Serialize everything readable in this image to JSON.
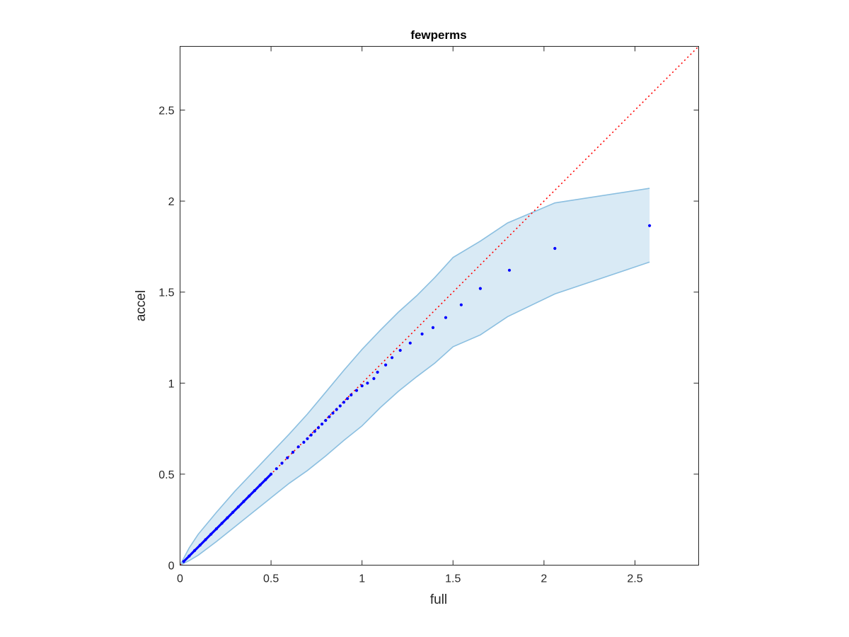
{
  "chart_data": {
    "type": "scatter",
    "title": "fewperms",
    "xlabel": "full",
    "ylabel": "accel",
    "xlim": [
      0,
      2.85
    ],
    "ylim": [
      0,
      2.85
    ],
    "grid": false,
    "legend": "none",
    "xticks": [
      0,
      0.5,
      1,
      1.5,
      2,
      2.5
    ],
    "xtick_labels": [
      "0",
      "0.5",
      "1",
      "1.5",
      "2",
      "2.5"
    ],
    "yticks": [
      0,
      0.5,
      1,
      1.5,
      2,
      2.5
    ],
    "ytick_labels": [
      "0",
      "0.5",
      "1",
      "1.5",
      "2",
      "2.5"
    ],
    "reference_line": {
      "style": "dotted",
      "color": "#ff0000",
      "from": [
        0,
        0
      ],
      "to": [
        2.85,
        2.85
      ]
    },
    "band": {
      "color": "#8bbfe0",
      "fill_opacity": 0.33,
      "x": [
        0,
        0.05,
        0.1,
        0.2,
        0.3,
        0.4,
        0.5,
        0.6,
        0.7,
        0.8,
        0.9,
        1.0,
        1.1,
        1.2,
        1.3,
        1.4,
        1.5,
        1.65,
        1.8,
        2.06,
        2.58
      ],
      "upper": [
        0,
        0.095,
        0.17,
        0.29,
        0.405,
        0.51,
        0.615,
        0.72,
        0.83,
        0.95,
        1.07,
        1.185,
        1.29,
        1.39,
        1.48,
        1.58,
        1.69,
        1.78,
        1.88,
        1.99,
        2.07
      ],
      "lower": [
        0,
        0.025,
        0.055,
        0.13,
        0.21,
        0.29,
        0.37,
        0.45,
        0.52,
        0.6,
        0.685,
        0.765,
        0.865,
        0.955,
        1.035,
        1.11,
        1.2,
        1.265,
        1.365,
        1.49,
        1.665
      ]
    },
    "series": [
      {
        "color": "#0000ff",
        "x": [
          0.02,
          0.05,
          0.08,
          0.11,
          0.14,
          0.17,
          0.2,
          0.23,
          0.26,
          0.29,
          0.32,
          0.35,
          0.38,
          0.41,
          0.44,
          0.47,
          0.5,
          0.53,
          0.56,
          0.59,
          0.62,
          0.65,
          0.68,
          0.7,
          0.72,
          0.74,
          0.76,
          0.78,
          0.8,
          0.82,
          0.84,
          0.86,
          0.88,
          0.9,
          0.92,
          0.94,
          0.97,
          1.0,
          1.03,
          1.065,
          1.085,
          1.13,
          1.165,
          1.21,
          1.265,
          1.33,
          1.39,
          1.46,
          1.545,
          1.65,
          1.81,
          2.06,
          2.58
        ],
        "y": [
          0.02,
          0.05,
          0.08,
          0.11,
          0.14,
          0.17,
          0.2,
          0.23,
          0.26,
          0.29,
          0.32,
          0.35,
          0.38,
          0.41,
          0.44,
          0.47,
          0.5,
          0.53,
          0.56,
          0.59,
          0.62,
          0.65,
          0.675,
          0.695,
          0.715,
          0.735,
          0.755,
          0.775,
          0.795,
          0.815,
          0.835,
          0.855,
          0.875,
          0.895,
          0.915,
          0.935,
          0.96,
          0.985,
          1.0,
          1.025,
          1.06,
          1.1,
          1.14,
          1.18,
          1.22,
          1.27,
          1.305,
          1.36,
          1.43,
          1.52,
          1.62,
          1.74,
          1.865
        ]
      }
    ]
  }
}
